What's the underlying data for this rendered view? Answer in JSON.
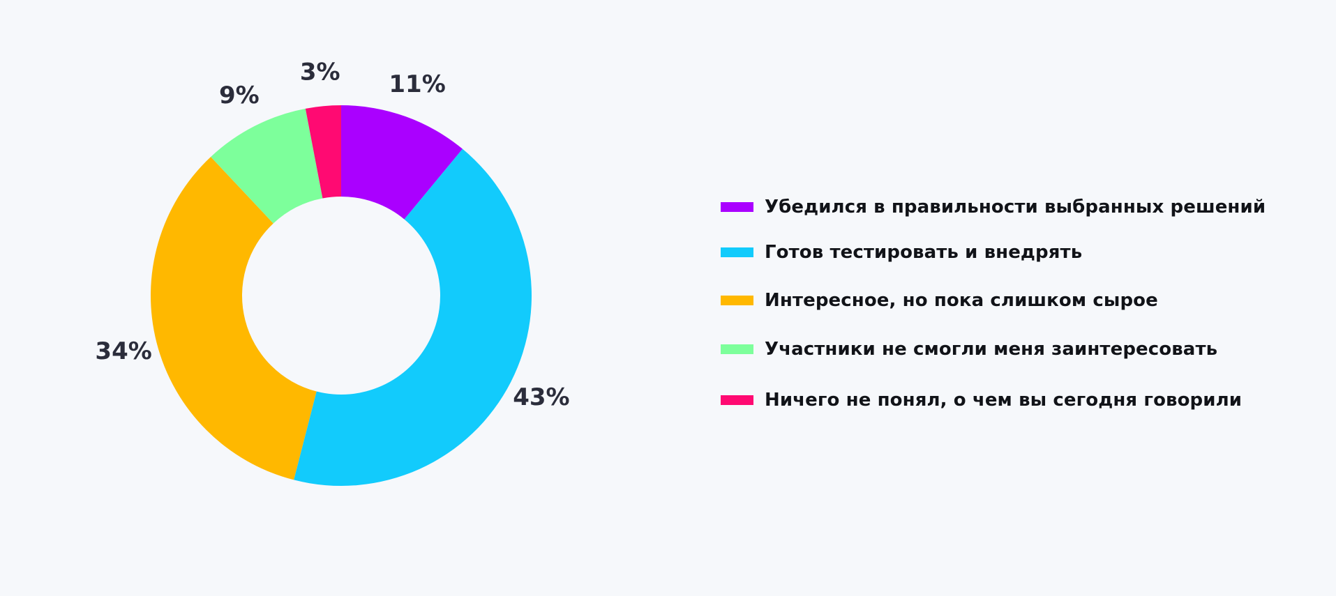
{
  "chart_data": {
    "type": "pie",
    "donut": true,
    "title": "",
    "legend_position": "right",
    "slices": [
      {
        "name": "Убедился в правильности выбранных решений",
        "value": 11,
        "label": "11%",
        "color": "#aa00ff"
      },
      {
        "name": "Готов тестировать и внедрять",
        "value": 43,
        "label": "43%",
        "color": "#12cbfc"
      },
      {
        "name": "Интересное, но пока слишком сырое",
        "value": 34,
        "label": "34%",
        "color": "#ffb800"
      },
      {
        "name": "Участники не смогли меня заинтересовать",
        "value": 9,
        "label": "9%",
        "color": "#7dff9b"
      },
      {
        "name": "Ничего не понял, о чем вы сегодня говорили",
        "value": 3,
        "label": "3%",
        "color": "#ff0a72"
      }
    ]
  },
  "colors": {
    "background": "#f6f8fb",
    "label_text": "#2b2d3b",
    "legend_text": "#111318"
  }
}
